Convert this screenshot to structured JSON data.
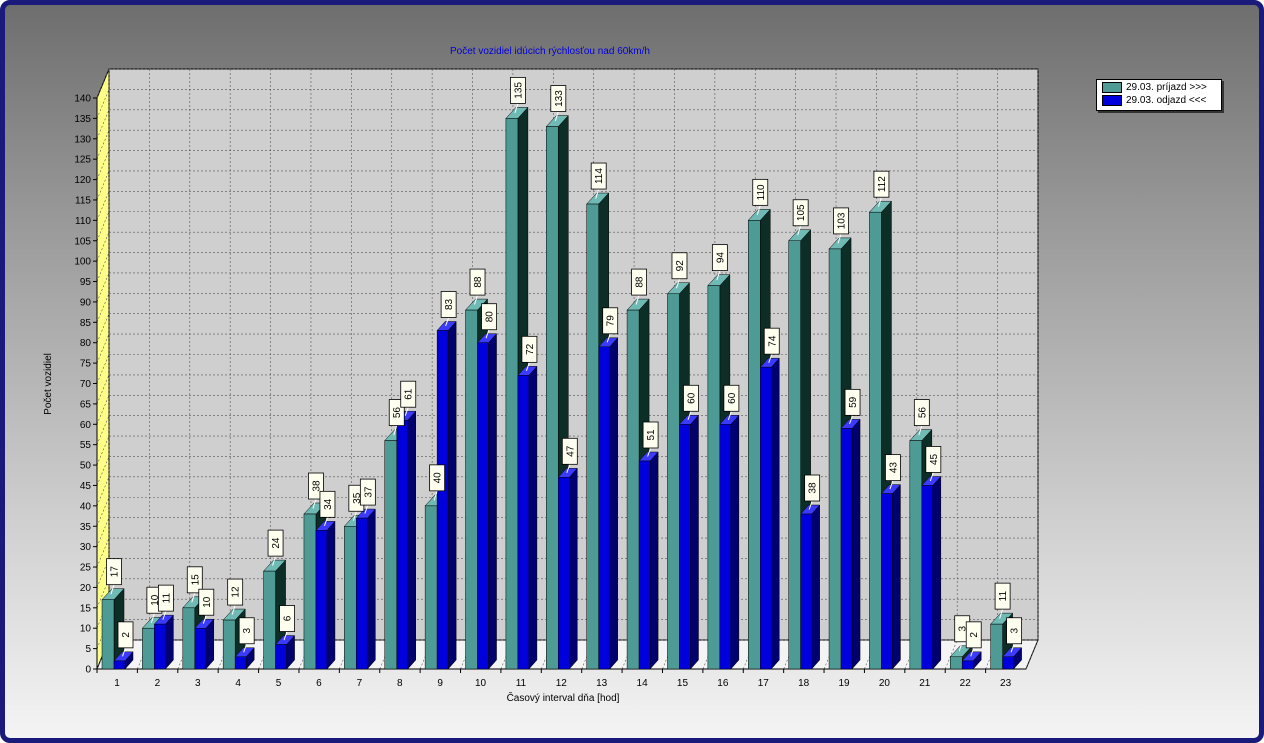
{
  "chart_data": {
    "type": "bar",
    "title": "Počet vozidiel idúcich rýchlosťou nad 60km/h",
    "xlabel": "Časový interval dňa [hod]",
    "ylabel": "Počet vozidiel",
    "categories": [
      "1",
      "2",
      "3",
      "4",
      "5",
      "6",
      "7",
      "8",
      "9",
      "10",
      "11",
      "12",
      "13",
      "14",
      "15",
      "16",
      "17",
      "18",
      "19",
      "20",
      "21",
      "22",
      "23"
    ],
    "ylim": [
      0,
      140
    ],
    "yticks": [
      0,
      5,
      10,
      15,
      20,
      25,
      30,
      35,
      40,
      45,
      50,
      55,
      60,
      65,
      70,
      75,
      80,
      85,
      90,
      95,
      100,
      105,
      110,
      115,
      120,
      125,
      130,
      135,
      140
    ],
    "grid": true,
    "legend_position": "top-right",
    "series": [
      {
        "name": "29.03.  príjazd >>>",
        "color": "#4e9a94",
        "values": [
          17,
          10,
          15,
          12,
          24,
          38,
          35,
          56,
          40,
          88,
          135,
          133,
          114,
          88,
          92,
          94,
          110,
          105,
          103,
          112,
          56,
          3,
          11
        ]
      },
      {
        "name": "29.03.  odjazd <<<",
        "color": "#0000dd",
        "values": [
          2,
          11,
          10,
          3,
          6,
          34,
          37,
          61,
          83,
          80,
          72,
          47,
          79,
          51,
          60,
          60,
          74,
          38,
          59,
          43,
          45,
          2,
          3
        ]
      }
    ]
  }
}
